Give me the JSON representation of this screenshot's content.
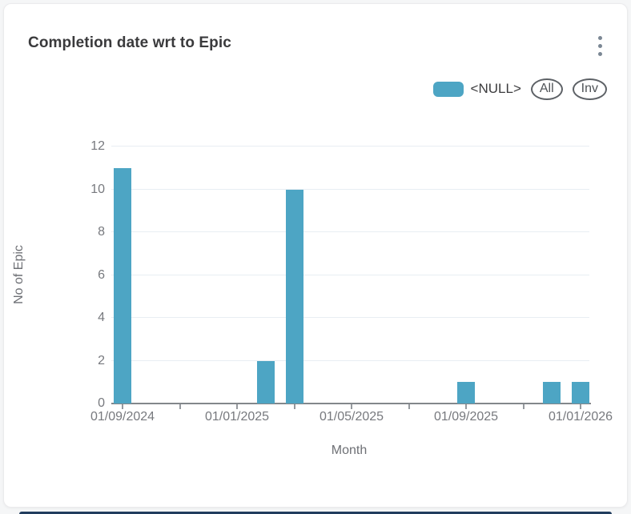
{
  "window": {
    "background": "#f5f6f7",
    "card_background": "#ffffff",
    "bottom_strip_color": "#213d5e"
  },
  "header": {
    "title": "Completion date wrt to Epic",
    "menu_icon": "kebab-vertical-icon"
  },
  "legend": {
    "series_label": "<NULL>",
    "swatch_color": "#4da5c4",
    "buttons": [
      {
        "label": "All"
      },
      {
        "label": "Inv"
      }
    ]
  },
  "chart_data": {
    "type": "bar",
    "title": "Completion date wrt to Epic",
    "xlabel": "Month",
    "ylabel": "No of Epic",
    "ylim": [
      0,
      12
    ],
    "y_ticks": [
      0,
      2,
      4,
      6,
      8,
      10,
      12
    ],
    "x_tick_count": 9,
    "x_tick_every_months": 2,
    "x_labeled_ticks": [
      "01/09/2024",
      "01/01/2025",
      "01/05/2025",
      "01/09/2025",
      "01/01/2026"
    ],
    "grid": true,
    "legend_position": "top-right",
    "bar_color": "#4da5c4",
    "series": [
      {
        "name": "<NULL>",
        "color": "#4da5c4",
        "points": [
          {
            "date": "01/09/2024",
            "value": 11
          },
          {
            "date": "01/02/2025",
            "value": 2
          },
          {
            "date": "01/03/2025",
            "value": 10
          },
          {
            "date": "01/09/2025",
            "value": 1
          },
          {
            "date": "01/12/2025",
            "value": 1
          },
          {
            "date": "01/01/2026",
            "value": 1
          }
        ]
      }
    ]
  }
}
